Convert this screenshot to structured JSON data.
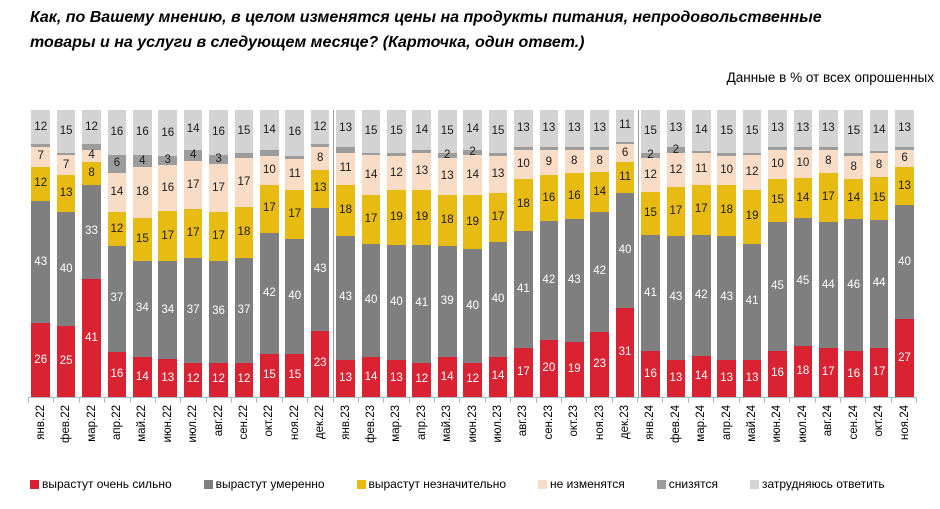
{
  "title": {
    "line1": "Как, по Вашему мнению, в целом изменятся цены на продукты питания, непродовольственные",
    "line2": "товары и на услуги в следующем месяце? (Карточка, один ответ.)"
  },
  "subtitle": "Данные в % от всех опрошенных",
  "chart_data": {
    "type": "bar",
    "stacked": true,
    "unit": "% of all respondents",
    "ylim": [
      0,
      100
    ],
    "grid": false,
    "legend_position": "bottom",
    "axis_color": "#a9bcc7",
    "separator_color": "#9c9c9c",
    "year_separators_after": [
      "дек.22",
      "дек.23"
    ],
    "categories": [
      "янв.22",
      "фев.22",
      "мар.22",
      "апр.22",
      "май.22",
      "июн.22",
      "июл.22",
      "авг.22",
      "сен.22",
      "окт.22",
      "ноя.22",
      "дек.22",
      "янв.23",
      "фев.23",
      "мар.23",
      "апр.23",
      "май.23",
      "июн.23",
      "июл.23",
      "авг.23",
      "сен.23",
      "окт.23",
      "ноя.23",
      "дек.23",
      "янв.24",
      "фев.24",
      "мар.24",
      "апр.24",
      "май.24",
      "июн.24",
      "июл.24",
      "авг.24",
      "сен.24",
      "окт.24",
      "ноя.24"
    ],
    "series": [
      {
        "name": "вырастут очень сильно",
        "color": "#da2332",
        "label_color": "#ffffff",
        "values": [
          26,
          25,
          41,
          16,
          14,
          13,
          12,
          12,
          12,
          15,
          15,
          23,
          13,
          14,
          13,
          12,
          14,
          12,
          14,
          17,
          20,
          19,
          23,
          31,
          16,
          13,
          14,
          13,
          13,
          16,
          18,
          17,
          16,
          17,
          27
        ]
      },
      {
        "name": "вырастут умеренно",
        "color": "#7f7f7f",
        "label_color": "#ffffff",
        "values": [
          43,
          40,
          33,
          37,
          34,
          34,
          37,
          36,
          37,
          42,
          40,
          43,
          43,
          40,
          40,
          41,
          39,
          40,
          40,
          41,
          42,
          43,
          42,
          40,
          41,
          43,
          42,
          43,
          41,
          45,
          45,
          44,
          46,
          44,
          40
        ]
      },
      {
        "name": "вырастут незначительно",
        "color": "#e8bb12",
        "label_color": "#1a1a1a",
        "values": [
          12,
          13,
          8,
          12,
          15,
          17,
          17,
          17,
          18,
          17,
          17,
          13,
          18,
          17,
          19,
          19,
          18,
          19,
          17,
          18,
          16,
          16,
          14,
          11,
          15,
          17,
          17,
          18,
          19,
          15,
          14,
          17,
          14,
          15,
          13
        ]
      },
      {
        "name": "не изменятся",
        "color": "#f8dcc6",
        "label_color": "#1a1a1a",
        "values": [
          7,
          7,
          4,
          14,
          18,
          16,
          17,
          17,
          17,
          10,
          11,
          8,
          11,
          14,
          12,
          13,
          13,
          14,
          13,
          10,
          9,
          8,
          8,
          6,
          12,
          12,
          11,
          10,
          12,
          10,
          10,
          8,
          8,
          8,
          6
        ]
      },
      {
        "name": "снизятся",
        "color": "#9c9c9c",
        "label_color": "#1a1a1a",
        "values": [
          1,
          1,
          2,
          6,
          4,
          3,
          4,
          3,
          2,
          2,
          1,
          1,
          2,
          1,
          1,
          1,
          2,
          2,
          1,
          1,
          1,
          1,
          1,
          1,
          2,
          2,
          1,
          1,
          1,
          1,
          1,
          1,
          1,
          1,
          1
        ],
        "labels": [
          "",
          "",
          "",
          "6",
          "4",
          "3",
          "4",
          "3",
          "",
          "",
          "",
          "",
          "",
          "",
          "",
          "",
          "2",
          "2",
          "",
          "",
          "",
          "",
          "",
          "",
          "2",
          "2",
          "",
          "",
          "",
          "",
          "",
          "",
          "",
          "",
          ""
        ]
      },
      {
        "name": "затрудняюсь ответить",
        "color": "#d3d3d3",
        "label_color": "#1a1a1a",
        "values": [
          12,
          15,
          12,
          16,
          16,
          16,
          14,
          16,
          15,
          14,
          16,
          12,
          13,
          15,
          15,
          14,
          15,
          14,
          15,
          13,
          13,
          13,
          13,
          11,
          15,
          13,
          14,
          15,
          15,
          13,
          13,
          13,
          15,
          14,
          13
        ]
      }
    ]
  }
}
